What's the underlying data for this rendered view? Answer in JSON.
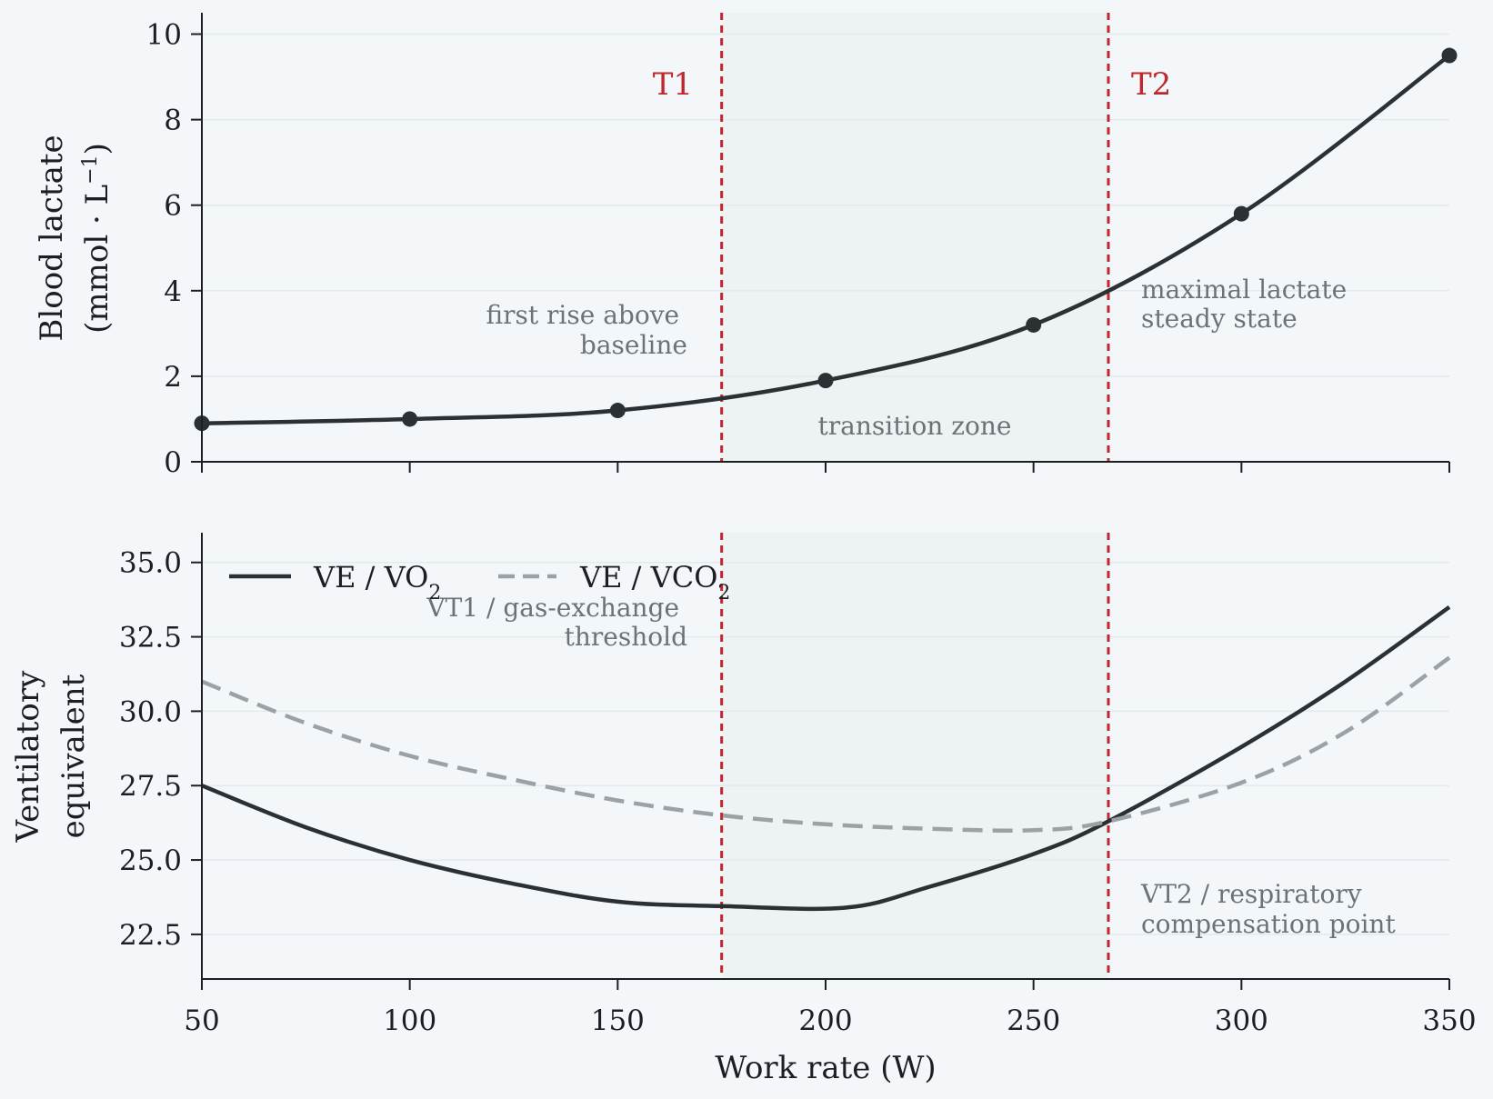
{
  "chart_data": [
    {
      "type": "line",
      "ylabel": "Blood lactate",
      "ylabel_units": "(mmol · L",
      "ylabel_units_exp": "−1",
      "ylabel_units_close": ")",
      "xlim": [
        50,
        350
      ],
      "ylim": [
        0,
        10.5
      ],
      "yticks": [
        "0",
        "2",
        "4",
        "6",
        "8",
        "10"
      ],
      "xticks": [
        "50",
        "100",
        "150",
        "200",
        "250",
        "300",
        "350"
      ],
      "grid": "horizontal",
      "series": [
        {
          "color": "#2b3035",
          "style": "solid",
          "x": [
            50,
            100,
            150,
            200,
            250,
            300,
            350
          ],
          "values": [
            0.9,
            1.0,
            1.2,
            1.9,
            3.2,
            5.8,
            9.5
          ]
        }
      ],
      "thresholds": [
        {
          "label": "T1",
          "x": 175
        },
        {
          "label": "T2",
          "x": 268
        }
      ],
      "shaded_region": {
        "x": [
          175,
          268
        ],
        "label": "transition zone"
      },
      "annotations": [
        {
          "lines": [
            "first rise above",
            "baseline"
          ]
        },
        {
          "lines": [
            "maximal lactate",
            "steady state"
          ]
        }
      ]
    },
    {
      "type": "line",
      "ylabel_line1": "Ventilatory",
      "ylabel_line2": "equivalent",
      "xlabel": "Work rate (W)",
      "xlim": [
        50,
        350
      ],
      "ylim": [
        21,
        36
      ],
      "yticks": [
        "22.5",
        "25.0",
        "27.5",
        "30.0",
        "32.5",
        "35.0"
      ],
      "xticks": [
        "50",
        "100",
        "150",
        "200",
        "250",
        "300",
        "350"
      ],
      "grid": "horizontal",
      "legend_position": "upper-left",
      "series": [
        {
          "name": "VE / VO",
          "name_sub": "2",
          "color": "#2b3035",
          "style": "solid",
          "x": [
            50,
            75,
            100,
            125,
            150,
            175,
            205,
            225,
            250,
            268,
            300,
            325,
            350
          ],
          "values": [
            27.5,
            26.1,
            25.0,
            24.2,
            23.6,
            23.45,
            23.4,
            24.1,
            25.2,
            26.3,
            28.8,
            31.0,
            33.5
          ]
        },
        {
          "name": "VE / VCO",
          "name_sub": "2",
          "color": "#9ba2a6",
          "style": "dashed",
          "x": [
            50,
            75,
            100,
            125,
            150,
            175,
            200,
            225,
            250,
            268,
            300,
            325,
            350
          ],
          "values": [
            31.0,
            29.6,
            28.5,
            27.7,
            27.0,
            26.5,
            26.2,
            26.05,
            26.0,
            26.3,
            27.6,
            29.3,
            31.8
          ]
        }
      ],
      "thresholds": [
        {
          "x": 175
        },
        {
          "x": 268
        }
      ],
      "shaded_region": {
        "x": [
          175,
          268
        ]
      },
      "annotations": [
        {
          "lines": [
            "VT1 / gas-exchange",
            "threshold"
          ]
        },
        {
          "lines": [
            "VT2 / respiratory",
            "compensation point"
          ]
        }
      ]
    }
  ]
}
